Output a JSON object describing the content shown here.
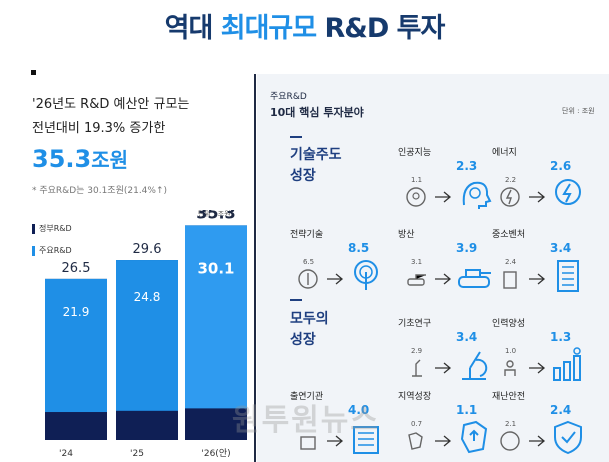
{
  "title": {
    "part1": "역대 ",
    "highlight": "최대규모",
    "part2": " R&D 투자"
  },
  "left": {
    "headline1": "'26년도 R&D 예산안 규모는",
    "headline2": "전년대비 19.3% 증가한",
    "big_number": "35.3",
    "big_unit": "조원",
    "note": "* 주요R&D는 30.1조원(21.4%↑)",
    "unit_label": "단위 : 조원",
    "legend": [
      {
        "label": "정부R&D",
        "color": "#0f1f55"
      },
      {
        "label": "주요R&D",
        "color": "#1f8fe6"
      }
    ]
  },
  "chart_data": {
    "type": "bar",
    "stacked": true,
    "categories": [
      "'24",
      "'25",
      "'26(안)"
    ],
    "series": [
      {
        "name": "주요R&D",
        "values": [
          21.9,
          24.8,
          30.1
        ],
        "color": "#1f8fe6"
      },
      {
        "name": "정부R&D",
        "values": [
          26.5,
          29.6,
          35.3
        ],
        "color": "#0f1f55"
      }
    ],
    "highlight_colors": {
      "main": "#2f9bf0",
      "total": "#0f1f55"
    },
    "unit": "단위 : 조원"
  },
  "right": {
    "title1": "주요R&D",
    "title2": "10대 핵심 투자분야",
    "unit_label": "단위 : 조원",
    "section1": "기술주도\n성장",
    "section2": "모두의\n성장",
    "fields": [
      {
        "name": "인공지능",
        "old": "1.1",
        "new": "2.3",
        "icon": "ai-head-icon"
      },
      {
        "name": "에너지",
        "old": "2.2",
        "new": "2.6",
        "icon": "energy-bolt-icon"
      },
      {
        "name": "전략기술",
        "old": "6.5",
        "new": "8.5",
        "icon": "touch-chip-icon"
      },
      {
        "name": "방산",
        "old": "3.1",
        "new": "3.9",
        "icon": "tank-icon"
      },
      {
        "name": "중소벤처",
        "old": "2.4",
        "new": "3.4",
        "icon": "building-icon"
      },
      {
        "name": "기초연구",
        "old": "2.9",
        "new": "3.4",
        "icon": "microscope-icon"
      },
      {
        "name": "인력양성",
        "old": "1.0",
        "new": "1.3",
        "icon": "people-growth-icon"
      },
      {
        "name": "출연기관",
        "old": "",
        "new": "4.0",
        "icon": "institute-icon"
      },
      {
        "name": "지역성장",
        "old": "0.7",
        "new": "1.1",
        "icon": "region-map-icon"
      },
      {
        "name": "재난안전",
        "old": "2.1",
        "new": "2.4",
        "icon": "shield-check-icon"
      }
    ]
  },
  "watermark": "원투원뉴스"
}
